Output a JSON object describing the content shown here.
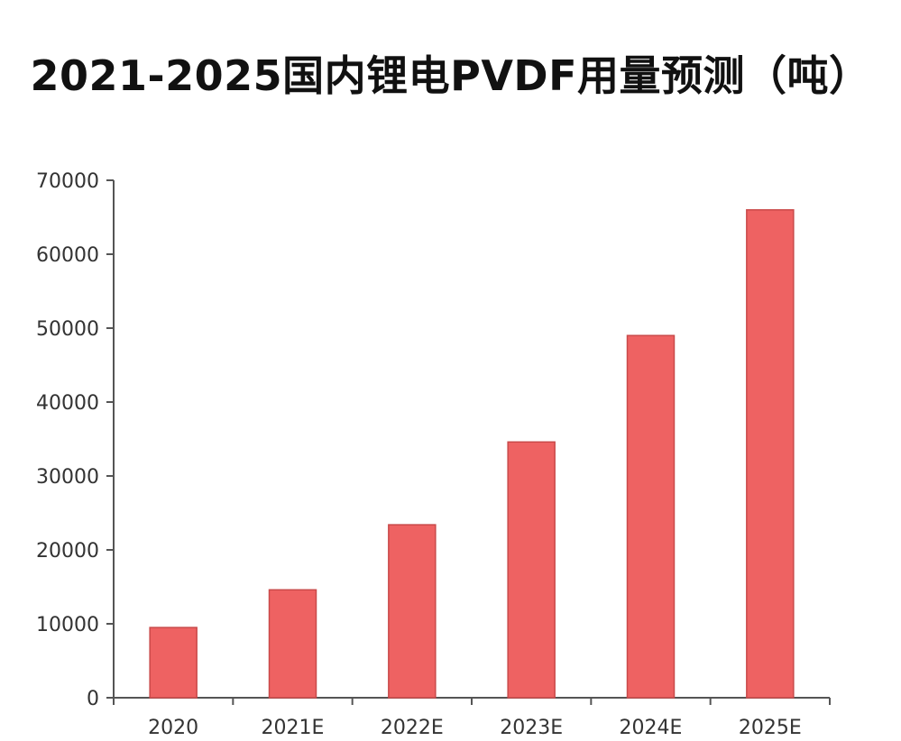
{
  "colors": {
    "bar_fill": "#ee6262",
    "bar_stroke": "#c94a4a",
    "axis": "#555555"
  },
  "chart_data": {
    "type": "bar",
    "title": "2021-2025国内锂电PVDF用量预测（吨）",
    "xlabel": "",
    "ylabel": "",
    "categories": [
      "2020",
      "2021E",
      "2022E",
      "2023E",
      "2024E",
      "2025E"
    ],
    "values": [
      9500,
      14600,
      23400,
      34600,
      49000,
      66000
    ],
    "ylim": [
      0,
      70000
    ],
    "yticks": [
      "0",
      "10000",
      "20000",
      "30000",
      "40000",
      "50000",
      "60000",
      "70000"
    ],
    "grid": false,
    "legend": "none"
  }
}
